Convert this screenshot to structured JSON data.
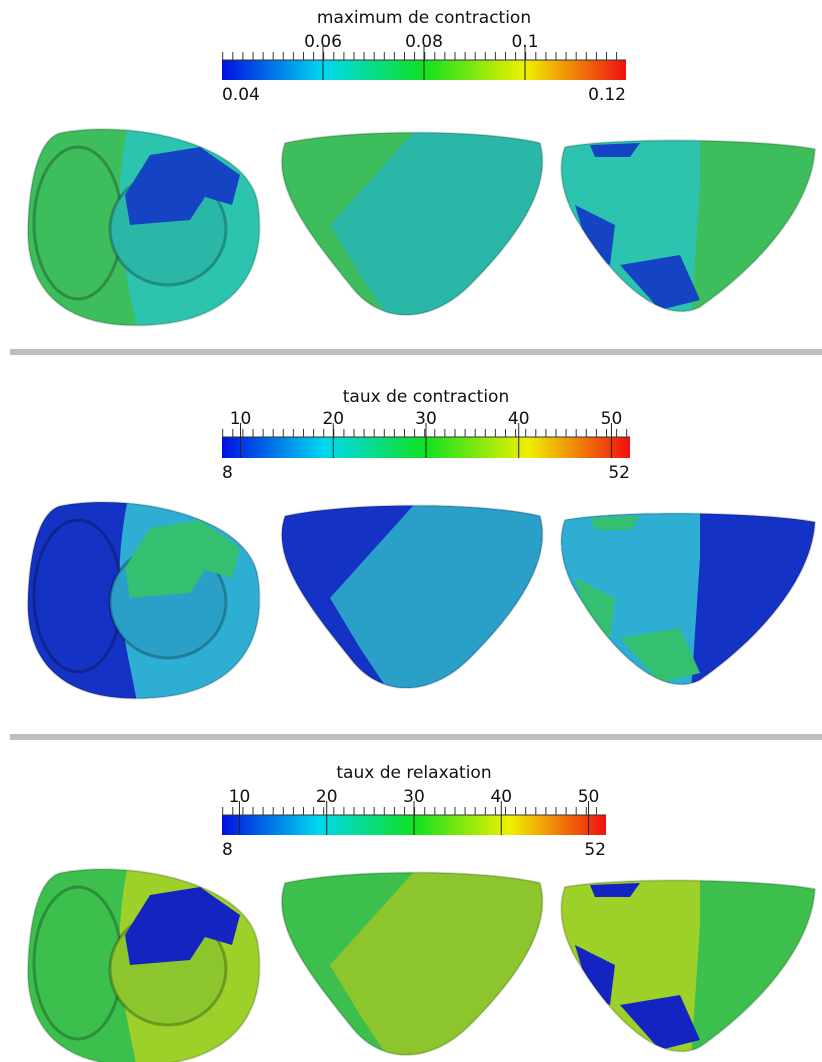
{
  "panels": [
    {
      "title": "maximum de contraction",
      "ticks": [
        0.06,
        0.08,
        0.1
      ],
      "min": 0.04,
      "max": 0.12
    },
    {
      "title": "taux de contraction",
      "ticks": [
        10,
        20,
        30,
        40,
        50
      ],
      "min": 8,
      "max": 52
    },
    {
      "title": "taux de relaxation",
      "ticks": [
        10,
        20,
        30,
        40,
        50
      ],
      "min": 8,
      "max": 52
    }
  ]
}
